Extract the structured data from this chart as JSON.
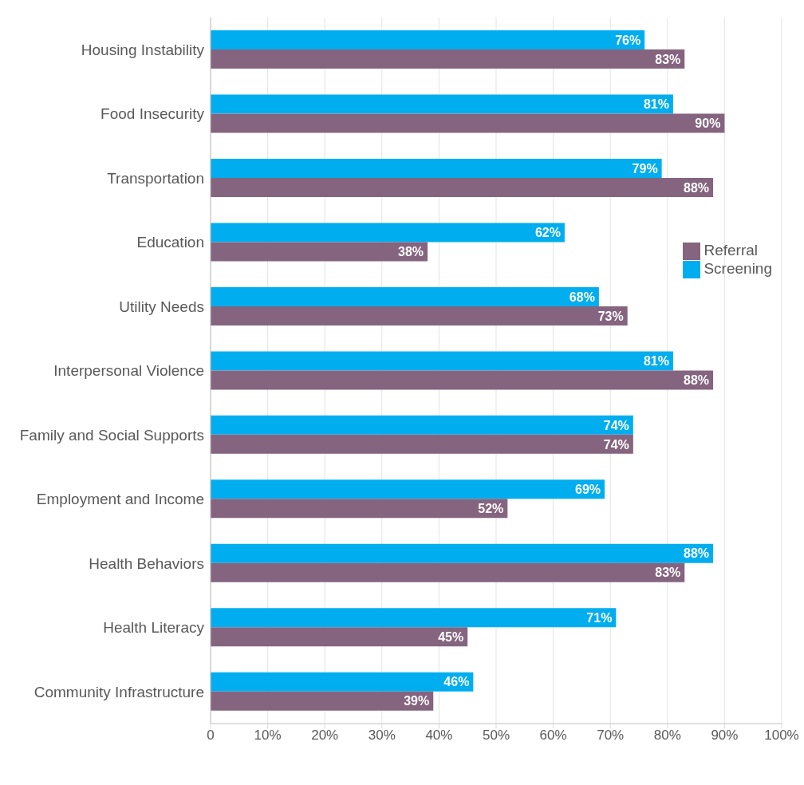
{
  "chart_data": {
    "type": "bar",
    "orientation": "horizontal",
    "categories": [
      "Housing Instability",
      "Food Insecurity",
      "Transportation",
      "Education",
      "Utility Needs",
      "Interpersonal Violence",
      "Family and Social Supports",
      "Employment and Income",
      "Health Behaviors",
      "Health Literacy",
      "Community Infrastructure"
    ],
    "series": [
      {
        "name": "Screening",
        "color": "#00aeef",
        "values": [
          76,
          81,
          79,
          62,
          68,
          81,
          74,
          69,
          88,
          71,
          46
        ],
        "value_labels": [
          "76%",
          "81%",
          "79%",
          "62%",
          "68%",
          "81%",
          "74%",
          "69%",
          "88%",
          "71%",
          "46%"
        ]
      },
      {
        "name": "Referral",
        "color": "#85647f",
        "values": [
          83,
          90,
          88,
          38,
          73,
          88,
          74,
          52,
          83,
          45,
          39
        ],
        "value_labels": [
          "83%",
          "90%",
          "88%",
          "38%",
          "73%",
          "88%",
          "74%",
          "52%",
          "83%",
          "45%",
          "39%"
        ]
      }
    ],
    "xlim": [
      0,
      100
    ],
    "xticks": [
      0,
      {
        "value": 10,
        "label": "10%"
      },
      {
        "value": 20,
        "label": "20%"
      },
      {
        "value": 30,
        "label": "30%"
      },
      {
        "value": 40,
        "label": "40%"
      },
      {
        "value": 50,
        "label": "50%"
      },
      {
        "value": 60,
        "label": "60%"
      },
      {
        "value": 70,
        "label": "70%"
      },
      {
        "value": 80,
        "label": "80%"
      },
      {
        "value": 90,
        "label": "90%"
      },
      {
        "value": 100,
        "label": "100%"
      }
    ],
    "grid": "x",
    "legend": "right"
  }
}
